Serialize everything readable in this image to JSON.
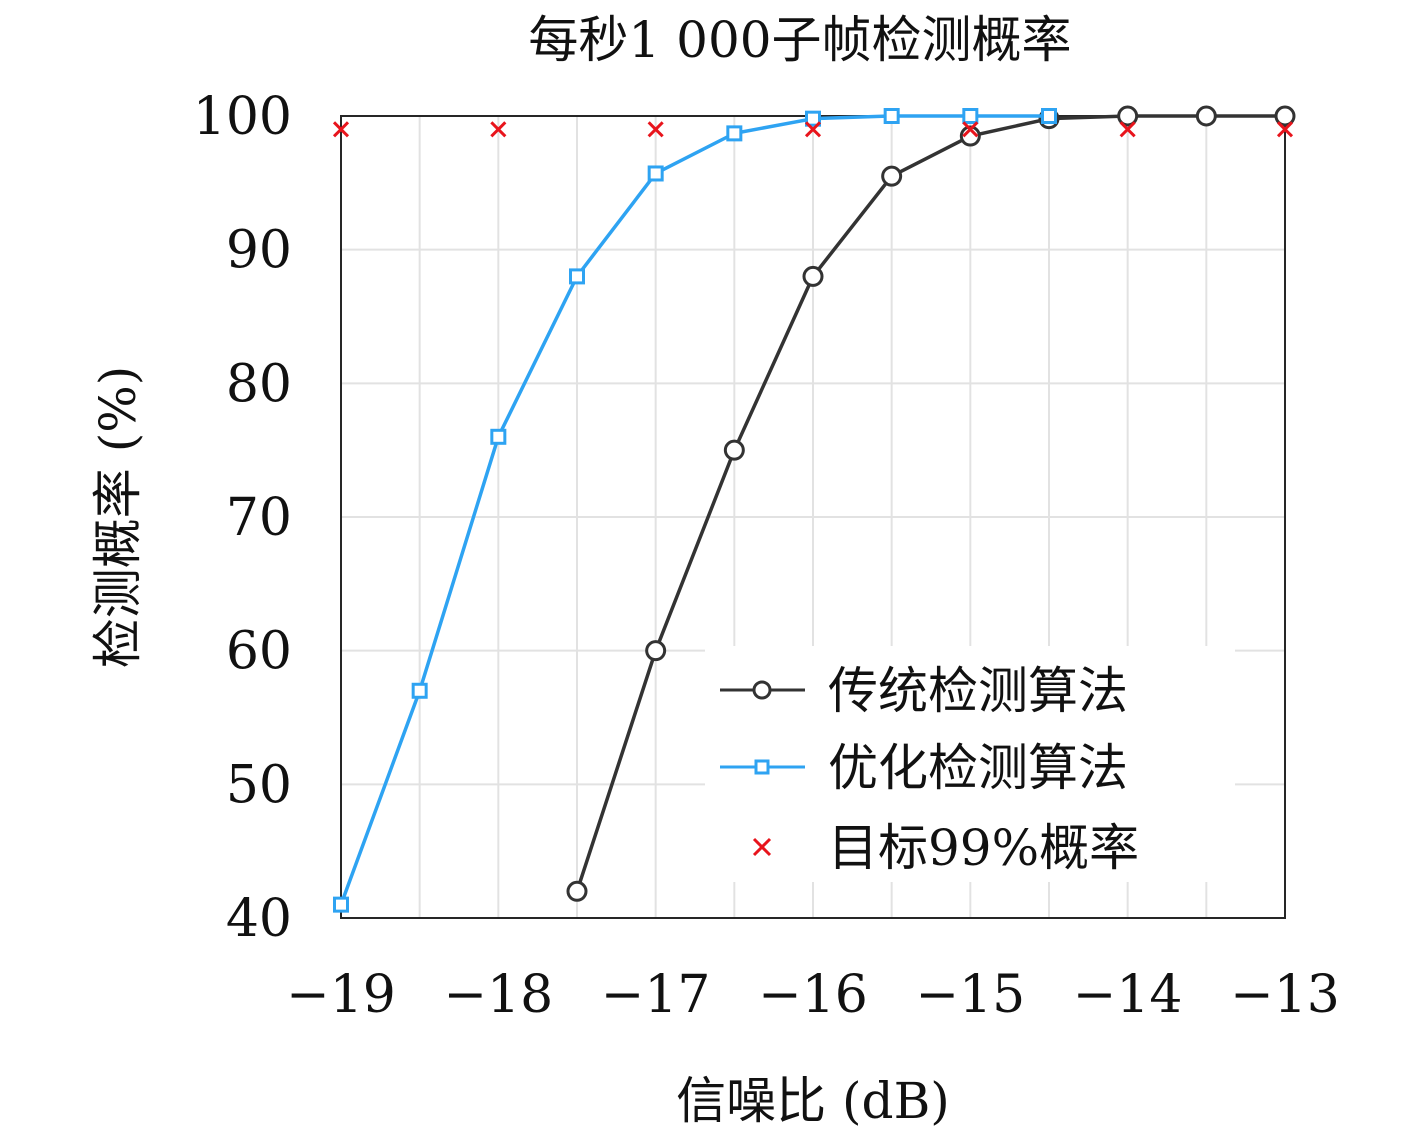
{
  "chart_data": {
    "type": "line",
    "title": "每秒1 000子帧检测概率",
    "xlabel": "信噪比 (dB)",
    "ylabel": "检测概率 (%)",
    "xlim": [
      -19,
      -13
    ],
    "ylim": [
      40,
      100
    ],
    "xticks": [
      -19,
      -18,
      -17,
      -16,
      -15,
      -14,
      -13
    ],
    "xtick_labels": [
      "−19",
      "−18",
      "−17",
      "−16",
      "−15",
      "−14",
      "−13"
    ],
    "yticks": [
      40,
      50,
      60,
      70,
      80,
      90,
      100
    ],
    "ytick_labels": [
      "40",
      "50",
      "60",
      "70",
      "80",
      "90",
      "100"
    ],
    "grid": true,
    "legend_position": "bottom-right",
    "series": [
      {
        "name": "传统检测算法",
        "marker": "circle",
        "color": "#333333",
        "x": [
          -17.5,
          -17,
          -16.5,
          -16,
          -15.5,
          -15,
          -14.5,
          -14,
          -13.5,
          -13
        ],
        "y": [
          42,
          60,
          75,
          88,
          95.5,
          98.5,
          99.8,
          100,
          100,
          100
        ]
      },
      {
        "name": "优化检测算法",
        "marker": "square",
        "color": "#2ea3f2",
        "x": [
          -19,
          -18.5,
          -18,
          -17.5,
          -17,
          -16.5,
          -16,
          -15.5,
          -15,
          -14.5
        ],
        "y": [
          41,
          57,
          76,
          88,
          95.7,
          98.7,
          99.8,
          100,
          100,
          100
        ]
      },
      {
        "name": "目标99%概率",
        "marker": "x",
        "color": "#e8141c",
        "x": [
          -19,
          -18,
          -17,
          -16,
          -15,
          -14,
          -13
        ],
        "y": [
          99,
          99,
          99,
          99,
          99,
          99,
          99
        ]
      }
    ]
  }
}
